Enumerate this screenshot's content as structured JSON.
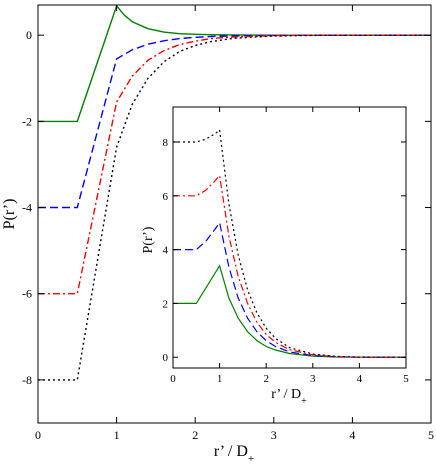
{
  "chart_data": [
    {
      "type": "line",
      "xlabel": "r’ / D",
      "xlabel_sub": "+",
      "ylabel": "P(r’)",
      "xlim": [
        0,
        5
      ],
      "ylim": [
        -9,
        0.7
      ],
      "xticks": [
        0,
        1,
        2,
        3,
        4,
        5
      ],
      "yticks": [
        -8,
        -6,
        -4,
        -2,
        0
      ],
      "grid": false,
      "series": [
        {
          "color": "#008000",
          "dash": "solid",
          "x": [
            0,
            0.5,
            1.0,
            1.1,
            1.2,
            1.4,
            1.6,
            1.8,
            2.0,
            2.2,
            2.5,
            3.0,
            3.5,
            4.0,
            5.0
          ],
          "y": [
            -2,
            -2,
            0.68,
            0.46,
            0.31,
            0.15,
            0.07,
            0.035,
            0.02,
            0.01,
            0.005,
            0,
            0,
            0,
            0
          ]
        },
        {
          "color": "#0000ff",
          "dash": "dashed",
          "x": [
            0,
            0.5,
            1.0,
            1.2,
            1.4,
            1.6,
            1.8,
            2.0,
            2.2,
            2.5,
            3.0,
            3.5,
            4.0,
            5.0
          ],
          "y": [
            -4,
            -4,
            -0.55,
            -0.34,
            -0.21,
            -0.13,
            -0.08,
            -0.05,
            -0.03,
            -0.015,
            -0.005,
            0,
            0,
            0
          ]
        },
        {
          "color": "#ff0000",
          "dash": "dashdot",
          "x": [
            0,
            0.5,
            1.0,
            1.2,
            1.4,
            1.6,
            1.8,
            2.0,
            2.2,
            2.5,
            3.0,
            3.5,
            4.0,
            5.0
          ],
          "y": [
            -6,
            -6,
            -1.55,
            -0.95,
            -0.58,
            -0.36,
            -0.22,
            -0.14,
            -0.08,
            -0.04,
            -0.01,
            0,
            0,
            0
          ]
        },
        {
          "color": "#000000",
          "dash": "dotted",
          "x": [
            0,
            0.5,
            1.0,
            1.2,
            1.4,
            1.6,
            1.8,
            2.0,
            2.2,
            2.5,
            3.0,
            3.5,
            4.0,
            5.0
          ],
          "y": [
            -8,
            -8,
            -2.6,
            -1.6,
            -1.0,
            -0.62,
            -0.38,
            -0.24,
            -0.15,
            -0.07,
            -0.02,
            -0.005,
            0,
            0
          ]
        }
      ]
    },
    {
      "type": "line",
      "xlabel": "r’ / D",
      "xlabel_sub": "+",
      "ylabel": "P(r’)",
      "xlim": [
        0,
        5
      ],
      "ylim": [
        -0.4,
        9.3
      ],
      "xticks": [
        0,
        1,
        2,
        3,
        4,
        5
      ],
      "yticks": [
        0,
        2,
        4,
        6,
        8
      ],
      "grid": false,
      "series": [
        {
          "color": "#008000",
          "dash": "solid",
          "x": [
            0,
            0.5,
            1.0,
            1.2,
            1.4,
            1.6,
            1.8,
            2.0,
            2.2,
            2.5,
            3.0,
            3.5,
            4.0,
            5.0
          ],
          "y": [
            2,
            2,
            3.4,
            2.2,
            1.45,
            0.95,
            0.62,
            0.4,
            0.27,
            0.14,
            0.04,
            0.01,
            0,
            0
          ]
        },
        {
          "color": "#0000ff",
          "dash": "dashed",
          "x": [
            0,
            0.5,
            0.7,
            0.9,
            1.0,
            1.2,
            1.4,
            1.6,
            1.8,
            2.0,
            2.2,
            2.5,
            3.0,
            3.5,
            4.0,
            5.0
          ],
          "y": [
            4,
            4,
            4.3,
            4.75,
            5.0,
            3.35,
            2.2,
            1.45,
            0.95,
            0.62,
            0.4,
            0.2,
            0.06,
            0.015,
            0,
            0
          ]
        },
        {
          "color": "#ff0000",
          "dash": "dashdot",
          "x": [
            0,
            0.5,
            0.7,
            0.9,
            1.0,
            1.2,
            1.4,
            1.6,
            1.8,
            2.0,
            2.2,
            2.5,
            3.0,
            3.5,
            4.0,
            5.0
          ],
          "y": [
            6,
            6,
            6.2,
            6.55,
            6.75,
            4.5,
            3.0,
            2.0,
            1.3,
            0.85,
            0.55,
            0.28,
            0.09,
            0.02,
            0.005,
            0
          ]
        },
        {
          "color": "#000000",
          "dash": "dotted",
          "x": [
            0,
            0.5,
            0.7,
            0.9,
            1.0,
            1.2,
            1.4,
            1.6,
            1.8,
            2.0,
            2.2,
            2.5,
            3.0,
            3.5,
            4.0,
            5.0
          ],
          "y": [
            8,
            8,
            8.1,
            8.3,
            8.45,
            5.7,
            3.8,
            2.5,
            1.65,
            1.08,
            0.7,
            0.36,
            0.12,
            0.03,
            0.01,
            0
          ]
        }
      ]
    }
  ]
}
